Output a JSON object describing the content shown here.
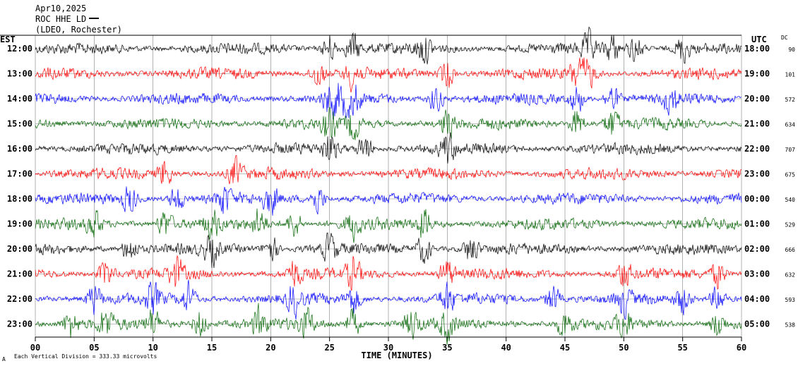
{
  "header": {
    "date": "Apr10,2025",
    "station": "ROC HHE LD",
    "location": "(LDEO, Rochester)"
  },
  "labels": {
    "left_timezone": "EST",
    "right_timezone": "UTC",
    "dc_header": "DC",
    "x_axis_title": "TIME (MINUTES)",
    "footer_scale": "Each Vertical Division =  333.33 microvolts",
    "footer_mark": "A"
  },
  "chart_data": {
    "type": "line",
    "title": "",
    "xlabel": "TIME (MINUTES)",
    "ylabel": "",
    "xlim": [
      0,
      60
    ],
    "x_ticks": [
      "00",
      "05",
      "10",
      "15",
      "20",
      "25",
      "30",
      "35",
      "40",
      "45",
      "50",
      "55",
      "60"
    ],
    "grid": true,
    "trace_colors": [
      "#000000",
      "#ff0000",
      "#0000ff",
      "#006400"
    ],
    "rows": [
      {
        "est": "12:00",
        "utc": "18:00",
        "dc": "90"
      },
      {
        "est": "13:00",
        "utc": "19:00",
        "dc": "101"
      },
      {
        "est": "14:00",
        "utc": "20:00",
        "dc": "572"
      },
      {
        "est": "15:00",
        "utc": "21:00",
        "dc": "634"
      },
      {
        "est": "16:00",
        "utc": "22:00",
        "dc": "707"
      },
      {
        "est": "17:00",
        "utc": "23:00",
        "dc": "675"
      },
      {
        "est": "18:00",
        "utc": "00:00",
        "dc": "540"
      },
      {
        "est": "19:00",
        "utc": "01:00",
        "dc": "529"
      },
      {
        "est": "20:00",
        "utc": "02:00",
        "dc": "666"
      },
      {
        "est": "21:00",
        "utc": "03:00",
        "dc": "632"
      },
      {
        "est": "22:00",
        "utc": "04:00",
        "dc": "593"
      },
      {
        "est": "23:00",
        "utc": "05:00",
        "dc": "538"
      }
    ]
  }
}
